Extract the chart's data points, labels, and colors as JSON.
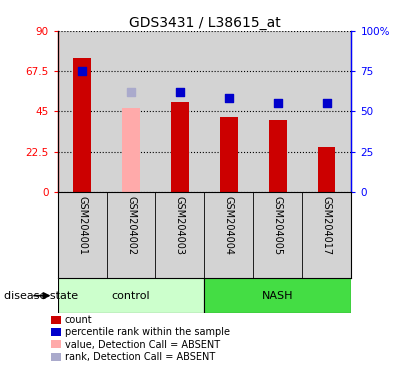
{
  "title": "GDS3431 / L38615_at",
  "samples": [
    "GSM204001",
    "GSM204002",
    "GSM204003",
    "GSM204004",
    "GSM204005",
    "GSM204017"
  ],
  "groups": [
    "control",
    "control",
    "control",
    "NASH",
    "NASH",
    "NASH"
  ],
  "count_values": [
    75,
    null,
    50,
    42,
    40,
    25
  ],
  "count_absent": [
    null,
    47,
    null,
    null,
    null,
    null
  ],
  "percentile_values": [
    75,
    null,
    62,
    58,
    55,
    55
  ],
  "percentile_absent": [
    null,
    62,
    null,
    null,
    null,
    null
  ],
  "left_ylim": [
    0,
    90
  ],
  "right_ylim": [
    0,
    100
  ],
  "left_yticks": [
    0,
    22.5,
    45,
    67.5,
    90
  ],
  "left_yticklabels": [
    "0",
    "22.5",
    "45",
    "67.5",
    "90"
  ],
  "right_yticks": [
    0,
    25,
    50,
    75,
    100
  ],
  "right_yticklabels": [
    "0",
    "25",
    "50",
    "75",
    "100%"
  ],
  "bar_color": "#CC0000",
  "bar_absent_color": "#FFAAAA",
  "dot_color": "#0000CC",
  "dot_absent_color": "#AAAACC",
  "control_color_light": "#CCFFCC",
  "control_color": "#CCFFCC",
  "nash_color": "#44DD44",
  "control_label": "control",
  "nash_label": "NASH",
  "disease_state_label": "disease state",
  "legend_items": [
    {
      "label": "count",
      "color": "#CC0000"
    },
    {
      "label": "percentile rank within the sample",
      "color": "#0000CC"
    },
    {
      "label": "value, Detection Call = ABSENT",
      "color": "#FFAAAA"
    },
    {
      "label": "rank, Detection Call = ABSENT",
      "color": "#AAAACC"
    }
  ],
  "bar_width": 0.35,
  "dot_size": 40,
  "title_fontsize": 10,
  "tick_fontsize": 7.5,
  "label_fontsize": 8,
  "sample_fontsize": 7
}
